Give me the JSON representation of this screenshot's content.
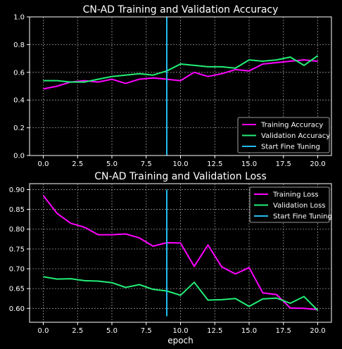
{
  "chart_data": [
    {
      "type": "line",
      "title": "CN-AD  Training and Validation Accuracy",
      "xlabel": "",
      "ylabel": "",
      "xlim": [
        -1,
        21
      ],
      "ylim": [
        0,
        1.0
      ],
      "xticks": [
        "0.0",
        "2.5",
        "5.0",
        "7.5",
        "10.0",
        "12.5",
        "15.0",
        "17.5",
        "20.0"
      ],
      "yticks": [
        "0.0",
        "0.2",
        "0.4",
        "0.6",
        "0.8",
        "1.0"
      ],
      "x": [
        0,
        1,
        2,
        3,
        4,
        5,
        6,
        7,
        8,
        9,
        10,
        11,
        12,
        13,
        14,
        15,
        16,
        17,
        18,
        19,
        20
      ],
      "series": [
        {
          "name": "Training Accuracy",
          "color": "#ff00ff",
          "values": [
            0.48,
            0.5,
            0.53,
            0.54,
            0.53,
            0.55,
            0.52,
            0.55,
            0.56,
            0.55,
            0.54,
            0.6,
            0.57,
            0.59,
            0.62,
            0.61,
            0.66,
            0.67,
            0.68,
            0.69,
            0.68
          ]
        },
        {
          "name": "Validation Accuracy",
          "color": "#22ee77",
          "values": [
            0.54,
            0.54,
            0.53,
            0.53,
            0.55,
            0.57,
            0.58,
            0.59,
            0.58,
            0.61,
            0.66,
            0.65,
            0.64,
            0.64,
            0.63,
            0.69,
            0.68,
            0.69,
            0.71,
            0.65,
            0.72
          ]
        }
      ],
      "vline": {
        "name": "Start Fine Tuning",
        "x": 9,
        "range": [
          0,
          1.0
        ],
        "color": "#22bbee"
      },
      "legend": "lower-right",
      "grid": true
    },
    {
      "type": "line",
      "title": "CN-AD  Training and Validation Loss",
      "xlabel": "epoch",
      "ylabel": "",
      "xlim": [
        -1,
        21
      ],
      "ylim": [
        0.565,
        0.915
      ],
      "xticks": [
        "0.0",
        "2.5",
        "5.0",
        "7.5",
        "10.0",
        "12.5",
        "15.0",
        "17.5",
        "20.0"
      ],
      "yticks": [
        "0.60",
        "0.65",
        "0.70",
        "0.75",
        "0.80",
        "0.85",
        "0.90"
      ],
      "x": [
        0,
        1,
        2,
        3,
        4,
        5,
        6,
        7,
        8,
        9,
        10,
        11,
        12,
        13,
        14,
        15,
        16,
        17,
        18,
        19,
        20
      ],
      "series": [
        {
          "name": "Training Loss",
          "color": "#ff00ff",
          "values": [
            0.885,
            0.84,
            0.815,
            0.805,
            0.786,
            0.786,
            0.788,
            0.778,
            0.757,
            0.766,
            0.765,
            0.706,
            0.76,
            0.705,
            0.687,
            0.703,
            0.639,
            0.635,
            0.601,
            0.6,
            0.597
          ]
        },
        {
          "name": "Validation Loss",
          "color": "#22ee77",
          "values": [
            0.68,
            0.674,
            0.675,
            0.67,
            0.669,
            0.665,
            0.653,
            0.66,
            0.648,
            0.644,
            0.633,
            0.666,
            0.621,
            0.622,
            0.625,
            0.605,
            0.624,
            0.626,
            0.613,
            0.63,
            0.595
          ]
        }
      ],
      "vline": {
        "name": "Start Fine Tuning",
        "x": 9,
        "range": [
          0.58,
          0.9
        ],
        "color": "#22bbee"
      },
      "legend": "upper-right",
      "grid": true
    }
  ]
}
